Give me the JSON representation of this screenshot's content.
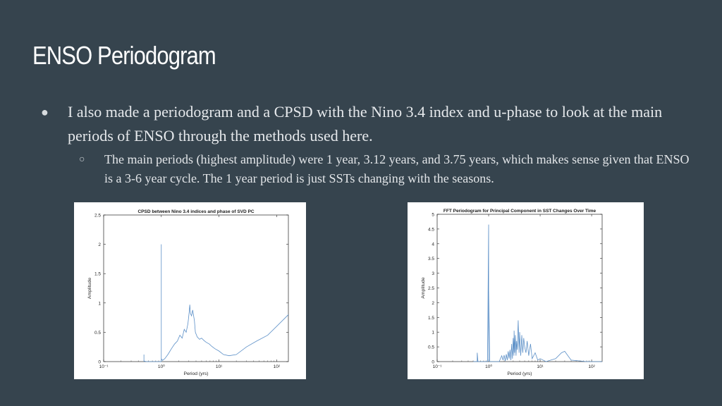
{
  "slide": {
    "title": "ENSO Periodogram",
    "bullet_main": "I also made a periodogram and a CPSD with the Nino 3.4 index and u-phase to look at the main periods of ENSO through the methods used here.",
    "bullet_sub": "The main periods (highest amplitude) were 1 year, 3.12 years, and 3.75 years, which makes sense given that ENSO is a 3-6 year cycle. The 1 year period is just SSTs changing with the seasons.",
    "bullet_icon": "filled-circle",
    "sub_bullet_icon": "hollow-circle"
  },
  "chart_data": [
    {
      "type": "line",
      "title": "CPSD between Nino 3.4 indices and phase of SVD PC",
      "xlabel": "Period (yrs)",
      "ylabel": "Amplitude",
      "xscale": "log",
      "xlim": [
        0.1,
        160
      ],
      "ylim": [
        0,
        2.5
      ],
      "xticks": [
        "10⁻¹",
        "10⁰",
        "10¹",
        "10²"
      ],
      "yticks": [
        "0",
        "0.5",
        "1",
        "1.5",
        "2",
        "2.5"
      ],
      "line_color": "#5b8fc7",
      "x": [
        0.5,
        0.5,
        0.5,
        0.55,
        1.0,
        1.0,
        1.0,
        1.05,
        1.15,
        1.3,
        1.5,
        1.7,
        1.9,
        2.1,
        2.3,
        2.5,
        2.7,
        2.9,
        3.05,
        3.12,
        3.2,
        3.35,
        3.5,
        3.75,
        3.9,
        4.2,
        4.6,
        5.0,
        5.5,
        6.0,
        6.8,
        7.5,
        8.5,
        10,
        12,
        15,
        20,
        30,
        45,
        70,
        100,
        160
      ],
      "values": [
        0.0,
        0.12,
        0.01,
        0.0,
        0.0,
        2.0,
        0.05,
        0.02,
        0.05,
        0.12,
        0.22,
        0.3,
        0.35,
        0.45,
        0.4,
        0.55,
        0.5,
        0.65,
        0.85,
        0.97,
        0.82,
        0.78,
        0.88,
        0.7,
        0.5,
        0.42,
        0.38,
        0.4,
        0.36,
        0.33,
        0.3,
        0.26,
        0.22,
        0.18,
        0.12,
        0.1,
        0.12,
        0.25,
        0.35,
        0.45,
        0.6,
        0.8
      ]
    },
    {
      "type": "line",
      "title": "FFT Periodogram for Principal Component in SST Changes Over Time",
      "xlabel": "Period (yrs)",
      "ylabel": "Amplitude",
      "xscale": "log",
      "xlim": [
        0.1,
        160
      ],
      "ylim": [
        0,
        5
      ],
      "xticks": [
        "10⁻¹",
        "10⁰",
        "10¹",
        "10²"
      ],
      "yticks": [
        "0",
        "0.5",
        "1",
        "1.5",
        "2",
        "2.5",
        "3",
        "3.5",
        "4",
        "4.5",
        "5"
      ],
      "line_color": "#5b8fc7",
      "x": [
        0.5,
        0.6,
        0.6,
        0.62,
        0.95,
        1.0,
        1.0,
        1.0,
        1.05,
        1.6,
        1.8,
        1.9,
        2.0,
        2.1,
        2.2,
        2.3,
        2.4,
        2.5,
        2.6,
        2.7,
        2.8,
        2.9,
        3.0,
        3.1,
        3.12,
        3.2,
        3.3,
        3.4,
        3.5,
        3.6,
        3.75,
        3.9,
        4.0,
        4.2,
        4.4,
        4.6,
        4.8,
        5.0,
        5.3,
        5.6,
        6.0,
        6.5,
        7.0,
        8.0,
        9.0,
        10,
        13,
        20,
        26,
        30,
        40,
        80,
        160
      ],
      "values": [
        0.0,
        0.0,
        0.3,
        0.0,
        0.0,
        4.65,
        0.0,
        2.45,
        0.0,
        0.0,
        0.2,
        0.05,
        0.22,
        0.02,
        0.25,
        0.05,
        0.35,
        0.1,
        0.4,
        0.05,
        0.6,
        0.1,
        0.8,
        0.2,
        1.05,
        0.3,
        0.9,
        0.2,
        0.7,
        0.4,
        1.4,
        0.3,
        1.0,
        0.2,
        0.9,
        0.3,
        0.8,
        0.5,
        0.3,
        0.7,
        0.2,
        0.6,
        0.1,
        0.3,
        0.05,
        0.1,
        0.0,
        0.1,
        0.3,
        0.35,
        0.05,
        0.0,
        0.0
      ]
    }
  ]
}
